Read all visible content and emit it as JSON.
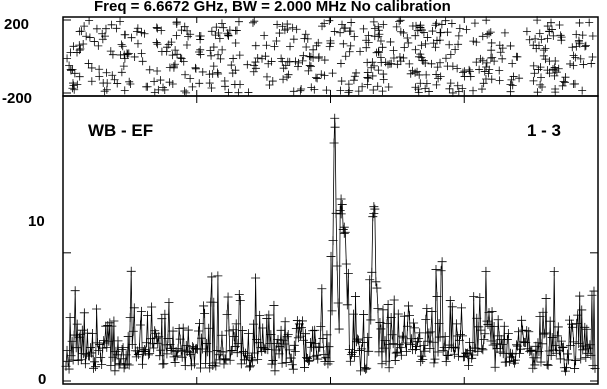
{
  "chart_data": [
    {
      "type": "scatter",
      "panel": "phase",
      "title": "Freq = 6.6672 GHz, BW = 2.000 MHz   No calibration",
      "ylim": [
        -200,
        200
      ],
      "ytick_labels": [
        "200",
        "-200"
      ],
      "marker": "plus",
      "color": "#000000",
      "description_of_values": "phase scatter uniformly spread over full range",
      "n_points": 520,
      "x_range": [
        0,
        1
      ]
    },
    {
      "type": "line",
      "panel": "amplitude",
      "series_label_left": "WB - EF",
      "series_label_right": "1 - 3",
      "ylim": [
        0,
        22
      ],
      "ytick_labels": [
        "10",
        "0"
      ],
      "ytick_values": [
        10,
        0
      ],
      "marker": "plus",
      "color": "#000000",
      "noise_mean": 3.2,
      "noise_max": 9.5,
      "peaks": [
        {
          "x": 0.508,
          "y": 20.5
        },
        {
          "x": 0.52,
          "y": 14.2
        },
        {
          "x": 0.526,
          "y": 12.0
        },
        {
          "x": 0.582,
          "y": 13.6
        }
      ],
      "n_points": 520,
      "x_range": [
        0,
        1
      ]
    }
  ]
}
